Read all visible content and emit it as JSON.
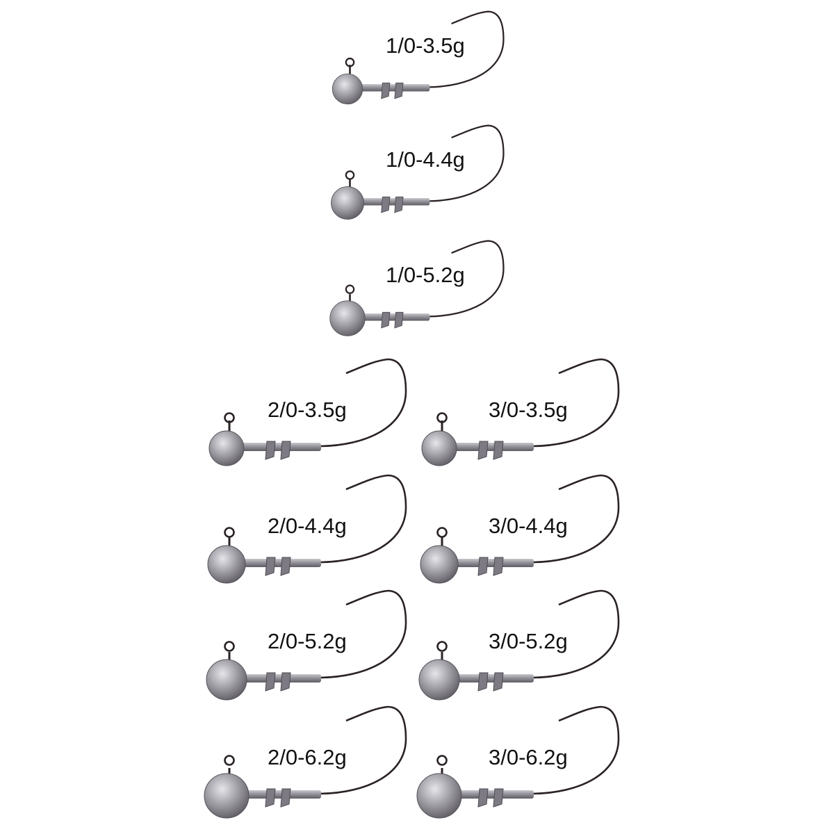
{
  "products": [
    {
      "hook_size": "1/0",
      "items": [
        {
          "label": "1/0-3.5g",
          "weight_g": 3.5
        },
        {
          "label": "1/0-4.4g",
          "weight_g": 4.4
        },
        {
          "label": "1/0-5.2g",
          "weight_g": 5.2
        }
      ]
    },
    {
      "hook_size": "2/0",
      "items": [
        {
          "label": "2/0-3.5g",
          "weight_g": 3.5
        },
        {
          "label": "2/0-4.4g",
          "weight_g": 4.4
        },
        {
          "label": "2/0-5.2g",
          "weight_g": 5.2
        },
        {
          "label": "2/0-6.2g",
          "weight_g": 6.2
        }
      ]
    },
    {
      "hook_size": "3/0",
      "items": [
        {
          "label": "3/0-3.5g",
          "weight_g": 3.5
        },
        {
          "label": "3/0-4.4g",
          "weight_g": 4.4
        },
        {
          "label": "3/0-5.2g",
          "weight_g": 5.2
        },
        {
          "label": "3/0-6.2g",
          "weight_g": 6.2
        }
      ]
    }
  ],
  "colors": {
    "hook_wire": "#2a2224",
    "lead_head": "#9a98a0",
    "text": "#111111"
  }
}
